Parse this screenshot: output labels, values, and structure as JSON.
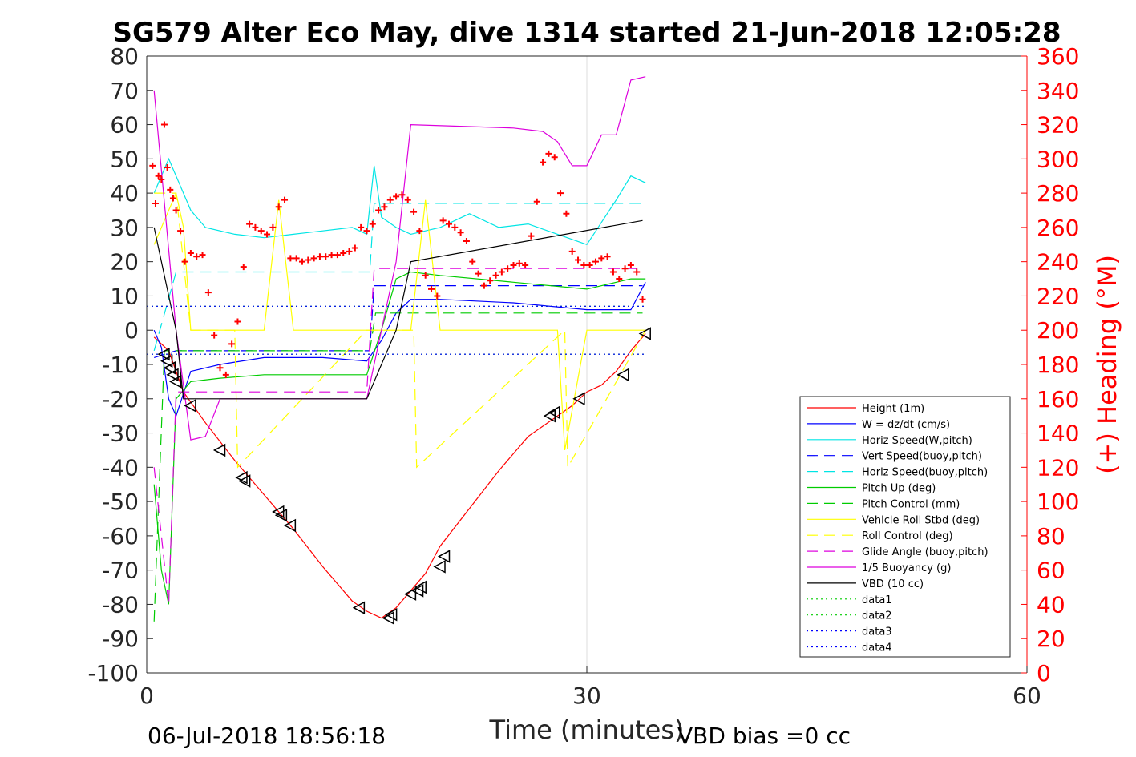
{
  "figure": {
    "title": "SG579 Alter Eco May, dive 1314 started 21-Jun-2018 12:05:28",
    "footer_left": "06-Jul-2018 18:56:18",
    "footer_right": "VBD bias =0 cc"
  },
  "colors": {
    "axis": "#262626",
    "right_axis": "#ff0000",
    "grid": "#d9d9d9"
  },
  "chart_data": {
    "type": "line",
    "title": "SG579 Alter Eco May, dive 1314 started 21-Jun-2018 12:05:28",
    "xlabel": "Time (minutes)",
    "ylabel": "",
    "ylabel_right": "(+) Heading (°M)",
    "xlim": [
      0,
      60
    ],
    "ylim": [
      -100,
      80
    ],
    "ylim_right": [
      0,
      360
    ],
    "x_ticks": [
      "0",
      "30",
      "60"
    ],
    "y_ticks": [
      "80",
      "70",
      "60",
      "50",
      "40",
      "30",
      "20",
      "10",
      "0",
      "-10",
      "-20",
      "-30",
      "-40",
      "-50",
      "-60",
      "-70",
      "-80",
      "-90",
      "-100"
    ],
    "y_ticks_right": [
      "360",
      "340",
      "320",
      "300",
      "280",
      "260",
      "240",
      "220",
      "200",
      "180",
      "160",
      "140",
      "120",
      "100",
      "80",
      "60",
      "40",
      "20",
      "0"
    ],
    "grid": "x only at tick 30",
    "legend_position": "lower-right",
    "series": [
      {
        "name": "Height (1m)",
        "color": "#ff0000",
        "style": "solid",
        "x": [
          0.5,
          1.5,
          2.5,
          4,
          6,
          8,
          10,
          12,
          14,
          15,
          16,
          17,
          18,
          19,
          20,
          22,
          24,
          26,
          28,
          29,
          30,
          31,
          32,
          33,
          34
        ],
        "y": [
          -2,
          -6,
          -18,
          -27,
          -38,
          -48,
          -58,
          -69,
          -79,
          -82,
          -84,
          -81,
          -76,
          -71,
          -63,
          -52,
          -41,
          -31,
          -25,
          -22,
          -18,
          -16,
          -12,
          -6,
          -1
        ]
      },
      {
        "name": "W = dz/dt (cm/s)",
        "color": "#0000ff",
        "style": "solid",
        "x": [
          0.5,
          1,
          1.5,
          2,
          3,
          5,
          8,
          12,
          15,
          16,
          17,
          18,
          20,
          25,
          30,
          33,
          34
        ],
        "y": [
          0,
          -5,
          -20,
          -25,
          -12,
          -10,
          -8,
          -8,
          -9,
          -3,
          5,
          9,
          9,
          8,
          6,
          6,
          14
        ]
      },
      {
        "name": "Horiz Speed(W,pitch)",
        "color": "#00e5e5",
        "style": "solid",
        "x": [
          0.5,
          1.5,
          2,
          3,
          4,
          6,
          8,
          10,
          12,
          14,
          15,
          15.5,
          16,
          17,
          18,
          20,
          22,
          24,
          26,
          28,
          30,
          32,
          33,
          34
        ],
        "y": [
          40,
          50,
          45,
          35,
          30,
          28,
          27,
          28,
          29,
          30,
          28,
          48,
          33,
          30,
          28,
          30,
          34,
          30,
          31,
          28,
          25,
          38,
          45,
          43
        ]
      },
      {
        "name": "Vert Speed(buoy,pitch)",
        "color": "#0000ff",
        "style": "dashed",
        "x": [
          0.5,
          2,
          15.2,
          15.5,
          17,
          33.8
        ],
        "y": [
          -8,
          -6,
          -6,
          13,
          13,
          13
        ]
      },
      {
        "name": "Horiz Speed(buoy,pitch)",
        "color": "#00e5e5",
        "style": "dashed",
        "x": [
          0.5,
          2,
          15.2,
          15.5,
          17,
          33.8
        ],
        "y": [
          -6,
          17,
          17,
          37,
          37,
          37
        ]
      },
      {
        "name": "Pitch Up (deg)",
        "color": "#00cc00",
        "style": "solid",
        "x": [
          0.5,
          1,
          1.5,
          2,
          3,
          5,
          8,
          12,
          15,
          16,
          17,
          18,
          20,
          25,
          30,
          33,
          34
        ],
        "y": [
          -45,
          -70,
          -80,
          -20,
          -15,
          -14,
          -13,
          -13,
          -13,
          0,
          15,
          17,
          16,
          14,
          12,
          15,
          15
        ]
      },
      {
        "name": "Pitch Control (mm)",
        "color": "#00cc00",
        "style": "dashed",
        "x": [
          0.5,
          1.2,
          15.2,
          15.6,
          33.8
        ],
        "y": [
          -85,
          -6,
          -6,
          5,
          5
        ]
      },
      {
        "name": "Vehicle Roll Stbd (deg)",
        "color": "#ffff00",
        "style": "solid",
        "x": [
          0.5,
          2,
          2.5,
          3,
          4,
          6,
          8,
          9,
          10,
          12,
          15,
          18,
          19,
          20,
          25,
          28,
          28.5,
          30,
          33,
          34
        ],
        "y": [
          25,
          40,
          30,
          0,
          0,
          0,
          0,
          38,
          0,
          0,
          0,
          0,
          38,
          0,
          0,
          0,
          -35,
          0,
          0,
          0
        ]
      },
      {
        "name": "Roll Control (deg)",
        "color": "#ffff00",
        "style": "dashed",
        "x": [
          0.5,
          2,
          3,
          6,
          6.2,
          15,
          18.2,
          18.4,
          28.5,
          28.7,
          34
        ],
        "y": [
          40,
          40,
          0,
          0,
          -40,
          0,
          0,
          -40,
          0,
          -40,
          0
        ]
      },
      {
        "name": "Glide Angle (buoy,pitch)",
        "color": "#dd00dd",
        "style": "dashed",
        "x": [
          0.5,
          1.5,
          2,
          3,
          8,
          15,
          15.5,
          17,
          25,
          33.8
        ],
        "y": [
          -40,
          -80,
          -18,
          -18,
          -18,
          -18,
          18,
          18,
          18,
          18
        ]
      },
      {
        "name": "1/5 Buoyancy (g)",
        "color": "#dd00dd",
        "style": "solid",
        "x": [
          0.5,
          2,
          3,
          4,
          5,
          8,
          12,
          15,
          16,
          17,
          18,
          25,
          27,
          28,
          29,
          30,
          31,
          32,
          33,
          34
        ],
        "y": [
          70,
          0,
          -32,
          -31,
          -20,
          -20,
          -20,
          -20,
          0,
          20,
          60,
          59,
          58,
          55,
          48,
          48,
          57,
          57,
          73,
          74
        ]
      },
      {
        "name": "VBD (10 cc)",
        "color": "#000000",
        "style": "solid",
        "x": [
          0.5,
          2,
          2.5,
          15,
          17,
          18,
          33.8
        ],
        "y": [
          30,
          0,
          -20,
          -20,
          0,
          20,
          32
        ]
      },
      {
        "name": "data1",
        "color": "#00cc00",
        "style": "dotted",
        "x": [
          0,
          34
        ],
        "y": [
          7,
          7
        ]
      },
      {
        "name": "data2",
        "color": "#00cc00",
        "style": "dotted",
        "x": [
          0,
          34
        ],
        "y": [
          -7,
          -7
        ]
      },
      {
        "name": "data3",
        "color": "#0000ff",
        "style": "dotted",
        "x": [
          0,
          34
        ],
        "y": [
          7,
          7
        ]
      },
      {
        "name": "data4",
        "color": "#0000ff",
        "style": "dotted",
        "x": [
          0,
          34
        ],
        "y": [
          -7,
          -7
        ]
      }
    ],
    "heading_markers": {
      "axis": "right",
      "color": "#ff0000",
      "marker": "+",
      "x": [
        0.4,
        0.6,
        0.8,
        1.0,
        1.2,
        1.4,
        1.6,
        1.8,
        2.0,
        2.3,
        2.6,
        3.0,
        3.4,
        3.8,
        4.2,
        4.6,
        5.0,
        5.4,
        5.8,
        6.2,
        6.6,
        7.0,
        7.4,
        7.8,
        8.2,
        8.6,
        9.0,
        9.4,
        9.8,
        10.2,
        10.6,
        11.0,
        11.4,
        11.8,
        12.2,
        12.6,
        13.0,
        13.4,
        13.8,
        14.2,
        14.6,
        15.0,
        15.4,
        15.8,
        16.2,
        16.6,
        17.0,
        17.4,
        17.8,
        18.2,
        18.6,
        19.0,
        19.4,
        19.8,
        20.2,
        20.6,
        21.0,
        21.4,
        21.8,
        22.2,
        22.6,
        23.0,
        23.4,
        23.8,
        24.2,
        24.6,
        25.0,
        25.4,
        25.8,
        26.2,
        26.6,
        27.0,
        27.4,
        27.8,
        28.2,
        28.6,
        29.0,
        29.4,
        29.8,
        30.2,
        30.6,
        31.0,
        31.4,
        31.8,
        32.2,
        32.6,
        33.0,
        33.4,
        33.8
      ],
      "y": [
        296,
        274,
        290,
        288,
        320,
        295,
        282,
        277,
        270,
        258,
        240,
        245,
        243,
        244,
        222,
        197,
        178,
        174,
        192,
        205,
        237,
        262,
        260,
        258,
        256,
        260,
        272,
        276,
        242,
        242,
        240,
        241,
        242,
        243,
        243,
        244,
        244,
        245,
        246,
        248,
        260,
        258,
        262,
        270,
        272,
        276,
        278,
        279,
        276,
        269,
        258,
        232,
        224,
        220,
        264,
        262,
        260,
        257,
        252,
        240,
        233,
        226,
        229,
        232,
        234,
        236,
        238,
        239,
        238,
        255,
        275,
        298,
        303,
        301,
        280,
        268,
        246,
        241,
        238,
        238,
        240,
        242,
        243,
        234,
        230,
        236,
        238,
        234,
        218
      ]
    },
    "vbd_markers": {
      "marker": "left-triangle",
      "color": "#000000",
      "x": [
        1.2,
        1.4,
        1.6,
        1.8,
        2.0,
        3.0,
        5.0,
        6.5,
        6.7,
        9.0,
        9.2,
        9.8,
        14.5,
        16.5,
        16.7,
        18.0,
        18.5,
        18.7,
        20.0,
        20.3,
        27.5,
        27.8,
        29.5,
        32.5,
        34.0
      ],
      "y": [
        -7,
        -9,
        -11,
        -13,
        -15,
        -22,
        -35,
        -43,
        -44,
        -53,
        -54,
        -57,
        -81,
        -84,
        -83,
        -77,
        -76,
        -75,
        -69,
        -66,
        -25,
        -24,
        -20,
        -13,
        -1
      ]
    }
  }
}
